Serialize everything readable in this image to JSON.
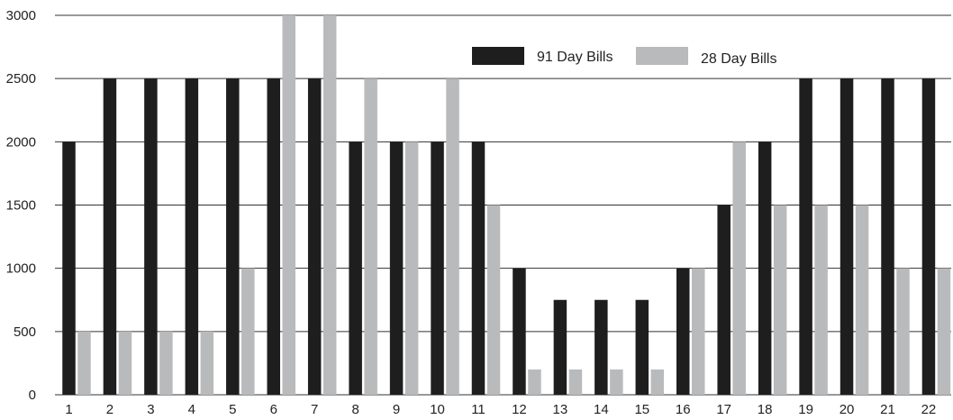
{
  "chart_data": {
    "type": "bar",
    "categories": [
      "1",
      "2",
      "3",
      "4",
      "5",
      "6",
      "7",
      "8",
      "9",
      "10",
      "11",
      "12",
      "13",
      "14",
      "15",
      "16",
      "17",
      "18",
      "19",
      "20",
      "21",
      "22"
    ],
    "series": [
      {
        "name": "91 Day Bills",
        "color": "#1e1e1e",
        "values": [
          2000,
          2500,
          2500,
          2500,
          2500,
          2500,
          2500,
          2000,
          2000,
          2000,
          2000,
          1000,
          750,
          750,
          750,
          1000,
          1500,
          2000,
          2500,
          2500,
          2500,
          2500
        ]
      },
      {
        "name": "28 Day Bills",
        "color": "#b9babc",
        "values": [
          500,
          500,
          500,
          500,
          1000,
          3000,
          3000,
          2500,
          2000,
          2500,
          1500,
          200,
          200,
          200,
          200,
          1000,
          2000,
          1500,
          1500,
          1500,
          1000,
          1000
        ]
      }
    ],
    "y_ticks": [
      "0",
      "500",
      "1000",
      "1500",
      "2000",
      "2500",
      "3000"
    ],
    "ylim": [
      0,
      3000
    ],
    "grid": true,
    "legend_position": "top-right",
    "title": "",
    "xlabel": "",
    "ylabel": ""
  }
}
